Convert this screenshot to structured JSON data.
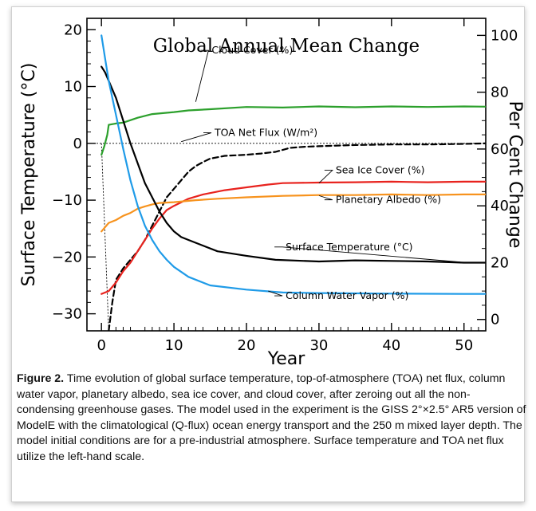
{
  "caption": {
    "lead": "Figure 2.",
    "text": " Time evolution of global surface temperature, top-of-atmosphere (TOA) net flux, column water vapor, planetary albedo, sea ice cover, and cloud cover, after zeroing out all the non-condensing greenhouse gases. The model used in the experiment is the GISS 2°×2.5° AR5 version of ModelE with the climatological (Q-flux) ocean energy transport and the 250 m mixed layer depth. The model initial conditions are for a pre-industrial atmosphere. Surface temperature and TOA net flux utilize the left-hand scale."
  },
  "chart_data": {
    "type": "line",
    "title": "Global Annual Mean Change",
    "xlabel": "Year",
    "ylabel_left": "Surface Temperature (°C)",
    "ylabel_right": "Per Cent Change",
    "xlim": [
      -2,
      53
    ],
    "ylim_left": [
      -33,
      22
    ],
    "ylim_right": [
      -4,
      106
    ],
    "x_ticks": [
      0,
      10,
      20,
      30,
      40,
      50
    ],
    "y_ticks_left": [
      20,
      10,
      0,
      -10,
      -20,
      -30
    ],
    "y_ticks_right": [
      100,
      80,
      60,
      40,
      20,
      0
    ],
    "zero_line": 0,
    "series": [
      {
        "name": "Cloud Cover (%)",
        "axis": "right",
        "color": "#2ca02c",
        "dash": false,
        "points": [
          [
            0,
            58
          ],
          [
            0.4,
            61
          ],
          [
            0.8,
            65
          ],
          [
            1,
            68.5
          ],
          [
            2,
            69
          ],
          [
            3,
            69.3
          ],
          [
            5,
            71
          ],
          [
            7,
            72.3
          ],
          [
            10,
            73
          ],
          [
            12,
            73.6
          ],
          [
            15,
            74
          ],
          [
            20,
            74.8
          ],
          [
            25,
            74.6
          ],
          [
            30,
            75
          ],
          [
            35,
            74.7
          ],
          [
            40,
            75
          ],
          [
            45,
            74.8
          ],
          [
            50,
            75
          ],
          [
            53,
            74.9
          ]
        ]
      },
      {
        "name": "TOA Net Flux (W/m²)",
        "axis": "left",
        "color": "#000000",
        "dash": true,
        "points": [
          [
            1,
            -33
          ],
          [
            1.5,
            -28
          ],
          [
            2,
            -24
          ],
          [
            3,
            -22
          ],
          [
            4,
            -20.5
          ],
          [
            5,
            -19
          ],
          [
            6,
            -17
          ],
          [
            7,
            -14.5
          ],
          [
            8,
            -12
          ],
          [
            9,
            -9.5
          ],
          [
            10,
            -8
          ],
          [
            11,
            -6.5
          ],
          [
            12,
            -5
          ],
          [
            13,
            -4
          ],
          [
            14,
            -3.3
          ],
          [
            15,
            -2.7
          ],
          [
            17,
            -2.2
          ],
          [
            20,
            -2
          ],
          [
            22,
            -1.8
          ],
          [
            24,
            -1.5
          ],
          [
            26,
            -0.8
          ],
          [
            28,
            -0.6
          ],
          [
            30,
            -0.5
          ],
          [
            35,
            -0.3
          ],
          [
            40,
            -0.2
          ],
          [
            45,
            -0.2
          ],
          [
            50,
            -0.1
          ],
          [
            53,
            0
          ]
        ]
      },
      {
        "name": "Sea Ice Cover (%)",
        "axis": "right",
        "color": "#e8231e",
        "dash": false,
        "points": [
          [
            0,
            9
          ],
          [
            1,
            10
          ],
          [
            2,
            13
          ],
          [
            3,
            17
          ],
          [
            4,
            20
          ],
          [
            5,
            24
          ],
          [
            6,
            28
          ],
          [
            7,
            32
          ],
          [
            8,
            35.5
          ],
          [
            9,
            38.5
          ],
          [
            10,
            40
          ],
          [
            12,
            42.5
          ],
          [
            14,
            44
          ],
          [
            17,
            45.5
          ],
          [
            20,
            46.5
          ],
          [
            23,
            47.5
          ],
          [
            25,
            48
          ],
          [
            30,
            48.2
          ],
          [
            35,
            48.3
          ],
          [
            40,
            48.5
          ],
          [
            45,
            48.3
          ],
          [
            50,
            48.5
          ],
          [
            53,
            48.5
          ]
        ]
      },
      {
        "name": "Planetary Albedo (%)",
        "axis": "right",
        "color": "#f7931e",
        "dash": false,
        "points": [
          [
            0,
            31
          ],
          [
            1,
            34
          ],
          [
            2,
            35
          ],
          [
            3,
            36.5
          ],
          [
            4,
            37.5
          ],
          [
            5,
            39
          ],
          [
            6,
            39.8
          ],
          [
            7,
            40.5
          ],
          [
            8,
            41
          ],
          [
            10,
            41.3
          ],
          [
            13,
            42
          ],
          [
            16,
            42.5
          ],
          [
            20,
            43
          ],
          [
            25,
            43.5
          ],
          [
            30,
            43.8
          ],
          [
            35,
            43.8
          ],
          [
            40,
            44
          ],
          [
            45,
            43.8
          ],
          [
            50,
            44
          ],
          [
            53,
            44
          ]
        ]
      },
      {
        "name": "Surface Temperature (°C)",
        "axis": "left",
        "color": "#000000",
        "dash": false,
        "points": [
          [
            0,
            13.5
          ],
          [
            0.5,
            12.5
          ],
          [
            1,
            11
          ],
          [
            2,
            8
          ],
          [
            3,
            4
          ],
          [
            4,
            0
          ],
          [
            5,
            -3.5
          ],
          [
            6,
            -7
          ],
          [
            7,
            -9.5
          ],
          [
            8,
            -12
          ],
          [
            9,
            -14
          ],
          [
            10,
            -15.5
          ],
          [
            11,
            -16.5
          ],
          [
            12,
            -17
          ],
          [
            14,
            -18
          ],
          [
            16,
            -19
          ],
          [
            20,
            -19.8
          ],
          [
            24,
            -20.5
          ],
          [
            30,
            -20.8
          ],
          [
            35,
            -20.6
          ],
          [
            40,
            -20.7
          ],
          [
            45,
            -20.8
          ],
          [
            50,
            -21
          ],
          [
            53,
            -21
          ]
        ]
      },
      {
        "name": "Column Water Vapor (%)",
        "axis": "right",
        "color": "#1f9be8",
        "dash": false,
        "points": [
          [
            0,
            100
          ],
          [
            0.5,
            92
          ],
          [
            1,
            84
          ],
          [
            2,
            72
          ],
          [
            3,
            60
          ],
          [
            4,
            49
          ],
          [
            5,
            40
          ],
          [
            6,
            33
          ],
          [
            7,
            28
          ],
          [
            8,
            24
          ],
          [
            9,
            21
          ],
          [
            10,
            18.5
          ],
          [
            12,
            15
          ],
          [
            15,
            12
          ],
          [
            20,
            10.5
          ],
          [
            25,
            9.5
          ],
          [
            30,
            9.3
          ],
          [
            40,
            9.1
          ],
          [
            50,
            9
          ],
          [
            53,
            9
          ]
        ]
      }
    ],
    "annotations": [
      {
        "text": "Cloud Cover (%)",
        "series": 0,
        "label_x": 15.2,
        "label_y": 15.8,
        "point_x": 13,
        "point_y": 7.3
      },
      {
        "text": "TOA Net Flux (W/m²)",
        "series": 1,
        "label_x": 15.6,
        "label_y": 1.3,
        "point_x": 11,
        "point_y": 0.3
      },
      {
        "text": "Sea Ice Cover (%)",
        "series": 2,
        "label_x": 32.3,
        "label_y": -5.3,
        "point_x": 30,
        "point_y": -7
      },
      {
        "text": "Planetary Albedo (%)",
        "series": 3,
        "label_x": 32.3,
        "label_y": -10.5,
        "point_x": 30,
        "point_y": -9.2
      },
      {
        "text": "Surface Temperature (°C)",
        "series": 4,
        "label_x": 25.4,
        "label_y": -18.8,
        "point_x": 49.5,
        "point_y": -20.9
      },
      {
        "text": "Column Water Vapor (%)",
        "series": 5,
        "label_x": 25.4,
        "label_y": -27.4,
        "point_x": 23,
        "point_y": -26
      }
    ]
  }
}
